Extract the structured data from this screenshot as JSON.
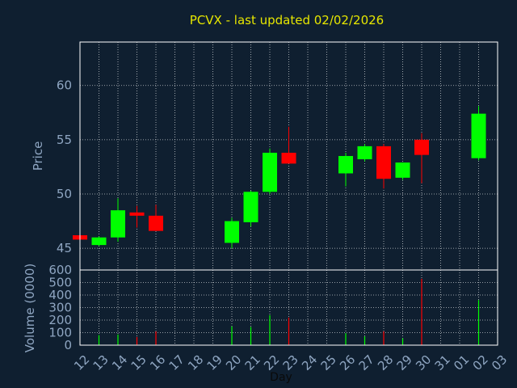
{
  "chart_data": {
    "type": "candlestick",
    "title": "PCVX - last updated 02/02/2026",
    "xlabel": "Day",
    "price_axis": {
      "label": "Price",
      "ylim": [
        43,
        64
      ],
      "ticks": [
        45,
        50,
        55,
        60
      ]
    },
    "volume_axis": {
      "label": "Volume (0000)",
      "ylim": [
        0,
        600
      ],
      "ticks": [
        0,
        100,
        200,
        300,
        400,
        500,
        600
      ]
    },
    "grid": true,
    "x_tick_labels": [
      "12",
      "13",
      "14",
      "15",
      "16",
      "17",
      "18",
      "19",
      "20",
      "21",
      "22",
      "23",
      "24",
      "25",
      "26",
      "27",
      "28",
      "29",
      "30",
      "31",
      "01",
      "02",
      "03"
    ],
    "candles": [
      {
        "day": "12",
        "open": 46.2,
        "close": 45.8,
        "high": 46.2,
        "low": 45.8,
        "volume": 0
      },
      {
        "day": "13",
        "open": 45.3,
        "close": 46.0,
        "high": 46.1,
        "low": 45.2,
        "volume": 80
      },
      {
        "day": "14",
        "open": 46.0,
        "close": 48.5,
        "high": 49.6,
        "low": 45.6,
        "volume": 85
      },
      {
        "day": "15",
        "open": 48.3,
        "close": 48.0,
        "high": 48.9,
        "low": 46.9,
        "volume": 65
      },
      {
        "day": "16",
        "open": 48.0,
        "close": 46.6,
        "high": 49.0,
        "low": 46.6,
        "volume": 110
      },
      {
        "day": "20",
        "open": 45.5,
        "close": 47.5,
        "high": 47.8,
        "low": 45.0,
        "volume": 150
      },
      {
        "day": "21",
        "open": 47.4,
        "close": 50.2,
        "high": 50.3,
        "low": 47.0,
        "volume": 145
      },
      {
        "day": "22",
        "open": 50.2,
        "close": 53.8,
        "high": 54.2,
        "low": 50.0,
        "volume": 240
      },
      {
        "day": "23",
        "open": 53.8,
        "close": 52.8,
        "high": 56.2,
        "low": 52.8,
        "volume": 220
      },
      {
        "day": "26",
        "open": 51.9,
        "close": 53.5,
        "high": 53.8,
        "low": 50.7,
        "volume": 95
      },
      {
        "day": "27",
        "open": 53.2,
        "close": 54.4,
        "high": 54.6,
        "low": 53.0,
        "volume": 70
      },
      {
        "day": "28",
        "open": 54.4,
        "close": 51.4,
        "high": 54.6,
        "low": 50.5,
        "volume": 110
      },
      {
        "day": "29",
        "open": 51.5,
        "close": 52.9,
        "high": 52.9,
        "low": 51.3,
        "volume": 55
      },
      {
        "day": "30",
        "open": 55.0,
        "close": 53.6,
        "high": 55.6,
        "low": 51.0,
        "volume": 530
      },
      {
        "day": "02",
        "open": 53.3,
        "close": 57.4,
        "high": 58.1,
        "low": 53.1,
        "volume": 360
      }
    ],
    "colors": {
      "up": "#00ff00",
      "down": "#ff0000",
      "background": "#0f1f30",
      "plot_border": "#ffffff",
      "grid": "#ffffff",
      "tick_text": "#8fa6c2",
      "title": "#e6e600"
    }
  }
}
